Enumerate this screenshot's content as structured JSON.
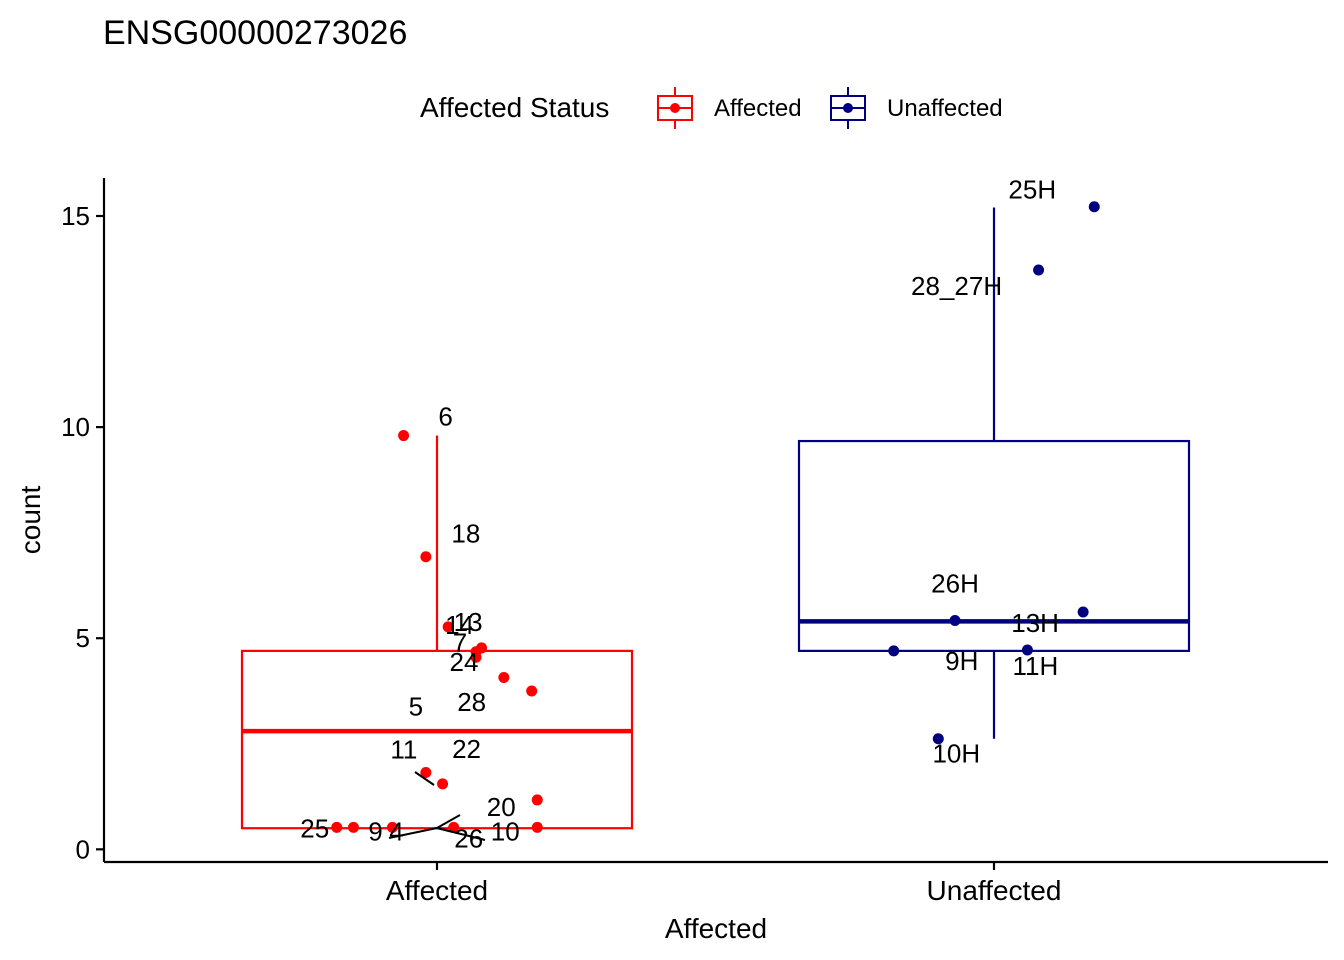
{
  "chart_data": {
    "type": "boxplot",
    "title": "ENSG00000273026",
    "xlabel": "Affected",
    "ylabel": "count",
    "ylim": [
      -0.3,
      15.9
    ],
    "yticks": [
      0,
      5,
      10,
      15
    ],
    "categories": [
      "Affected",
      "Unaffected"
    ],
    "legend": {
      "title": "Affected Status",
      "position": "top",
      "entries": [
        {
          "label": "Affected",
          "color": "#ff0000"
        },
        {
          "label": "Unaffected",
          "color": "#000080"
        }
      ]
    },
    "series": [
      {
        "name": "Affected",
        "color": "#ff0000",
        "box": {
          "whisker_low": 0.5,
          "q1": 0.5,
          "median": 2.8,
          "q3": 4.7,
          "whisker_high": 9.8
        },
        "points": [
          {
            "label": "6",
            "x_offset": -0.06,
            "y": 9.8
          },
          {
            "label": "18",
            "x_offset": -0.02,
            "y": 6.93
          },
          {
            "label": "13",
            "x_offset": 0.02,
            "y": 5.27
          },
          {
            "label": "14",
            "x_offset": 0.08,
            "y": 4.77
          },
          {
            "label": "7",
            "x_offset": 0.07,
            "y": 4.68
          },
          {
            "label": "24",
            "x_offset": 0.07,
            "y": 4.55
          },
          {
            "label": "5",
            "x_offset": 0.12,
            "y": 4.07
          },
          {
            "label": "28",
            "x_offset": 0.17,
            "y": 3.75
          },
          {
            "label": "11",
            "x_offset": -0.02,
            "y": 1.82
          },
          {
            "label": "22",
            "x_offset": 0.01,
            "y": 1.55
          },
          {
            "label": "20",
            "x_offset": 0.18,
            "y": 1.17
          },
          {
            "label": "26",
            "x_offset": 0.03,
            "y": 0.52
          },
          {
            "label": "25",
            "x_offset": -0.18,
            "y": 0.52
          },
          {
            "label": "9",
            "x_offset": -0.15,
            "y": 0.52
          },
          {
            "label": "4",
            "x_offset": -0.08,
            "y": 0.52
          },
          {
            "label": "10",
            "x_offset": 0.18,
            "y": 0.52
          }
        ]
      },
      {
        "name": "Unaffected",
        "color": "#000080",
        "box": {
          "whisker_low": 2.62,
          "q1": 4.7,
          "median": 5.4,
          "q3": 9.67,
          "whisker_high": 15.2
        },
        "points": [
          {
            "label": "25H",
            "x_offset": 0.18,
            "y": 15.22
          },
          {
            "label": "28_27H",
            "x_offset": 0.08,
            "y": 13.72
          },
          {
            "label": "26H",
            "x_offset": -0.07,
            "y": 5.42
          },
          {
            "label": "13H",
            "x_offset": 0.16,
            "y": 5.62
          },
          {
            "label": "9H",
            "x_offset": -0.18,
            "y": 4.7
          },
          {
            "label": "11H",
            "x_offset": 0.06,
            "y": 4.72
          },
          {
            "label": "10H",
            "x_offset": -0.1,
            "y": 2.62
          }
        ]
      }
    ]
  }
}
